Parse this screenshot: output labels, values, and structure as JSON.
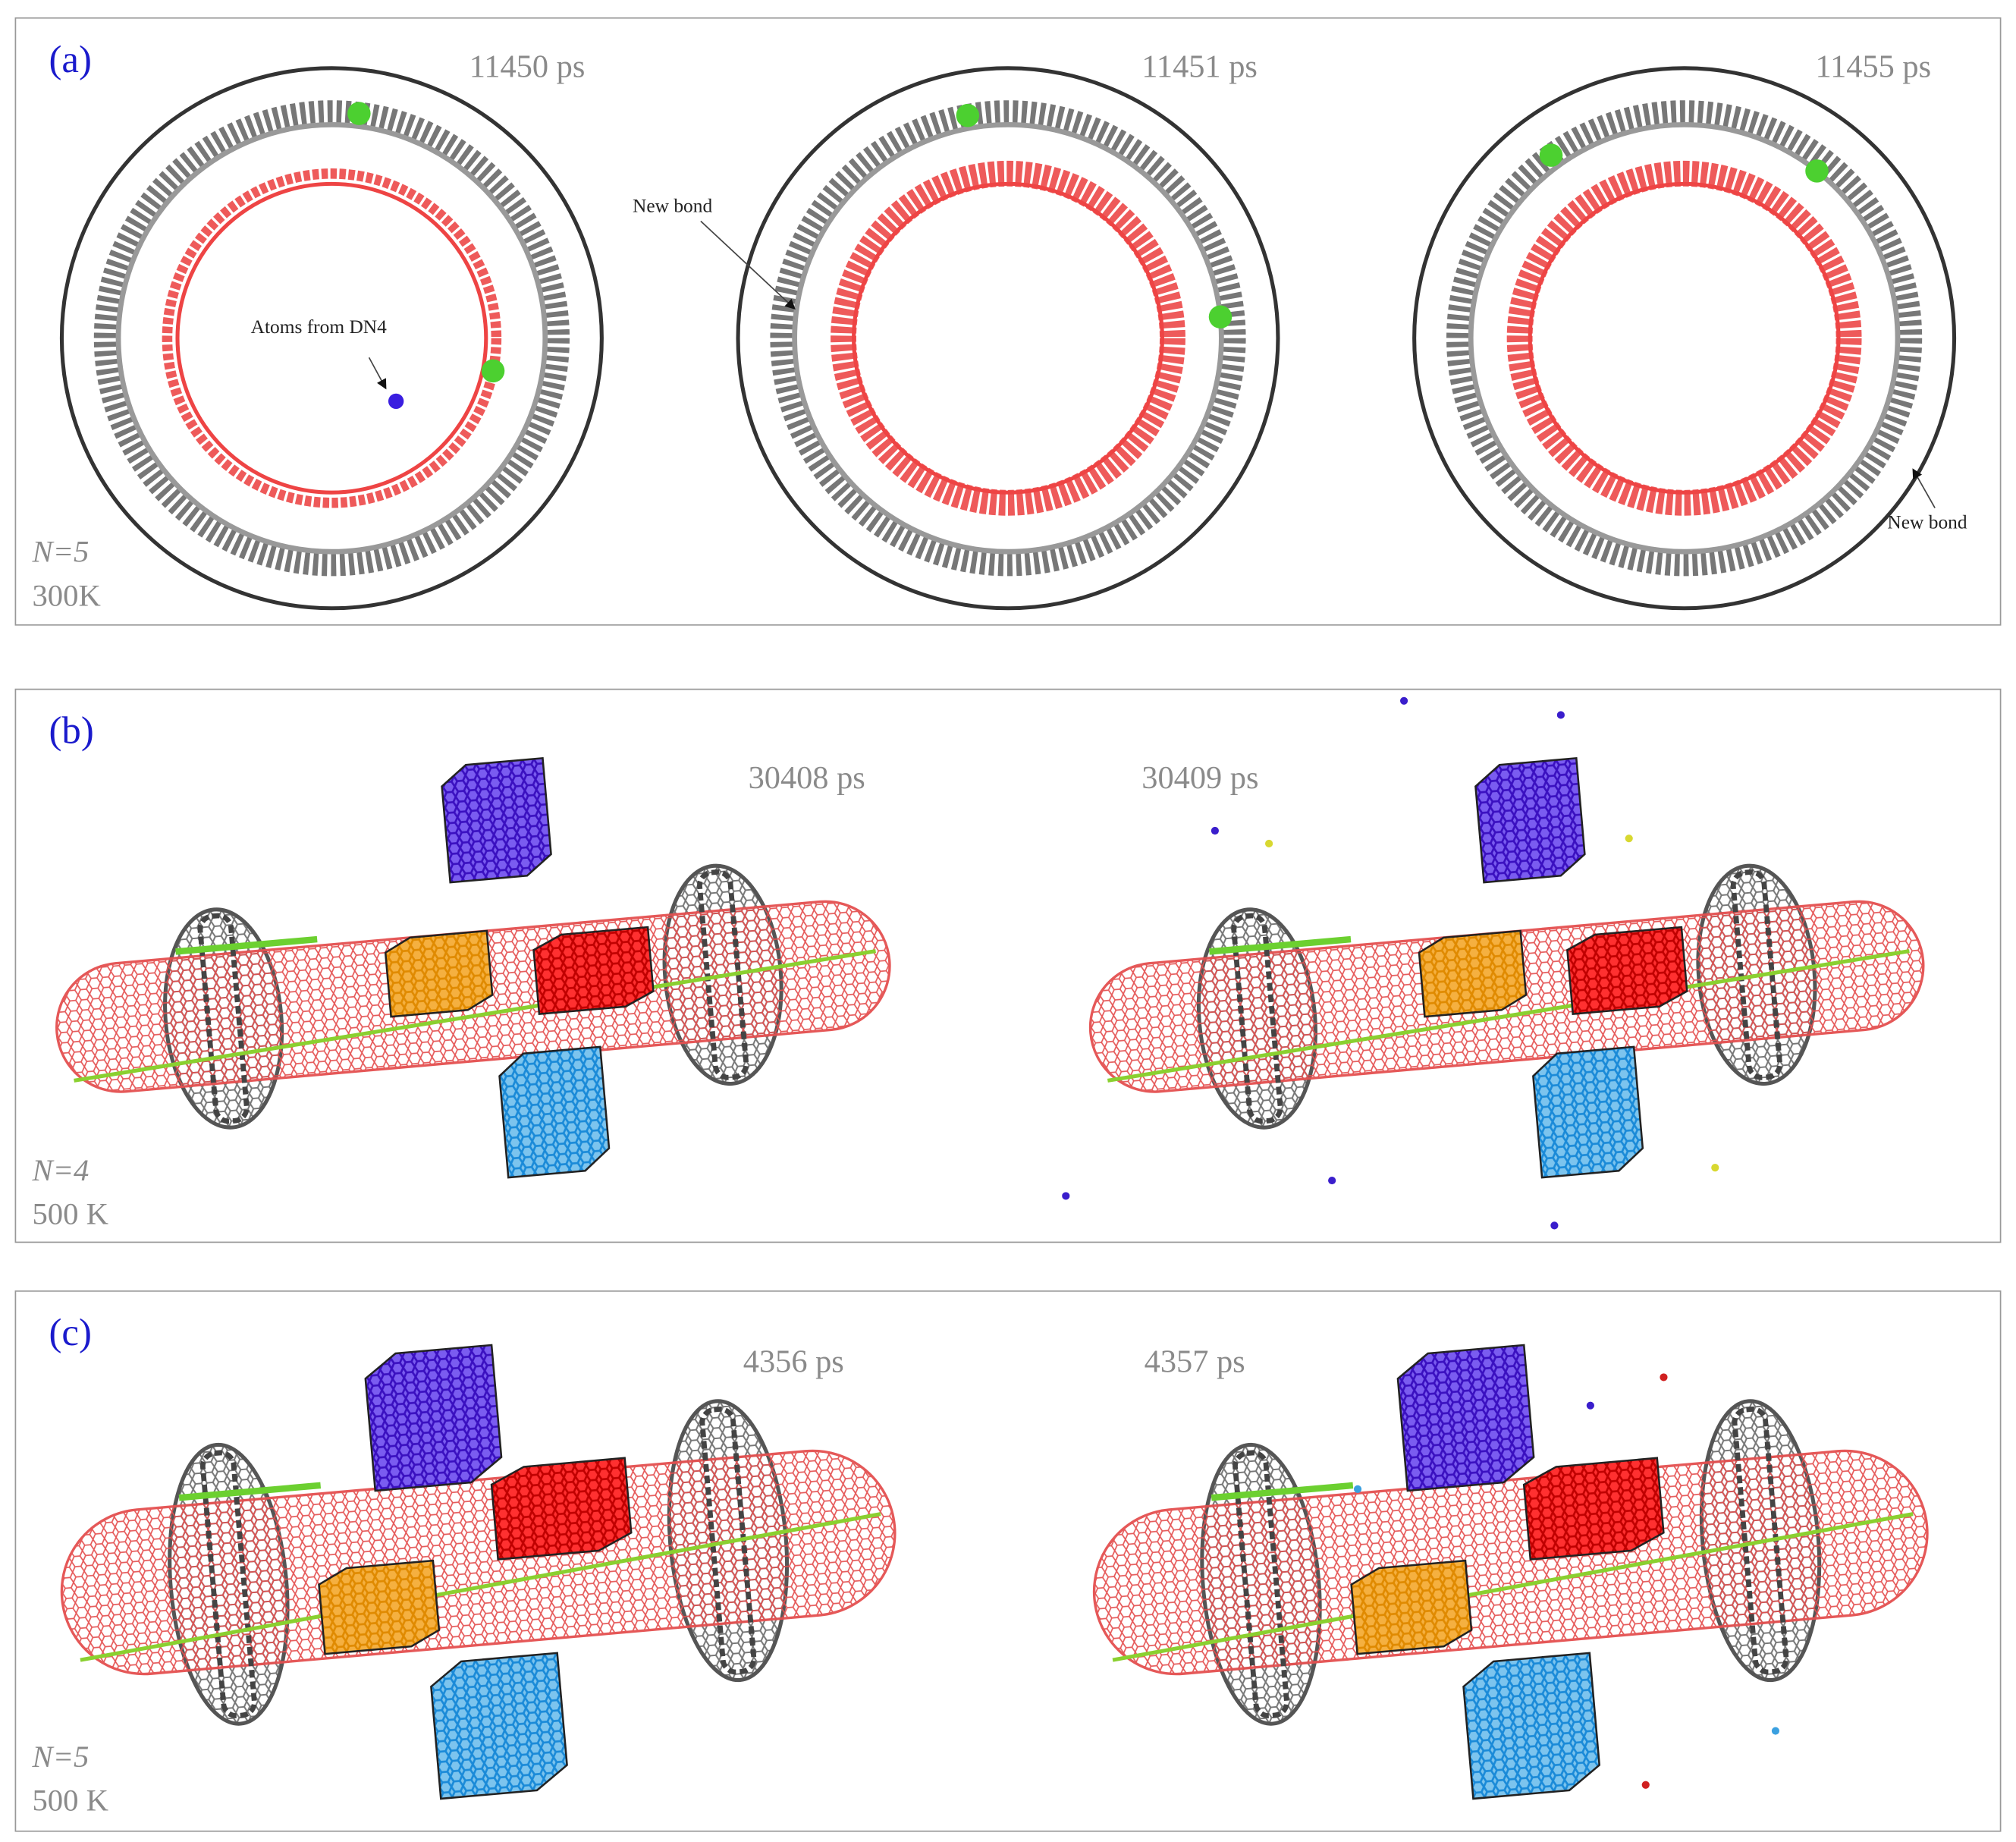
{
  "panels": [
    {
      "label": "(a)",
      "frames": [
        {
          "time": "11450 ps"
        },
        {
          "time": "11451 ps"
        },
        {
          "time": "11455 ps"
        }
      ],
      "annotations": [
        "Atoms from DN4",
        "New bond",
        "New bond"
      ],
      "n": "N=5",
      "temperature": "300K"
    },
    {
      "label": "(b)",
      "frames": [
        {
          "time": "30408 ps"
        },
        {
          "time": "30409 ps"
        }
      ],
      "n": "N=4",
      "temperature": "500 K"
    },
    {
      "label": "(c)",
      "frames": [
        {
          "time": "4356 ps"
        },
        {
          "time": "4357 ps"
        }
      ],
      "n": "N=5",
      "temperature": "500 K"
    }
  ]
}
